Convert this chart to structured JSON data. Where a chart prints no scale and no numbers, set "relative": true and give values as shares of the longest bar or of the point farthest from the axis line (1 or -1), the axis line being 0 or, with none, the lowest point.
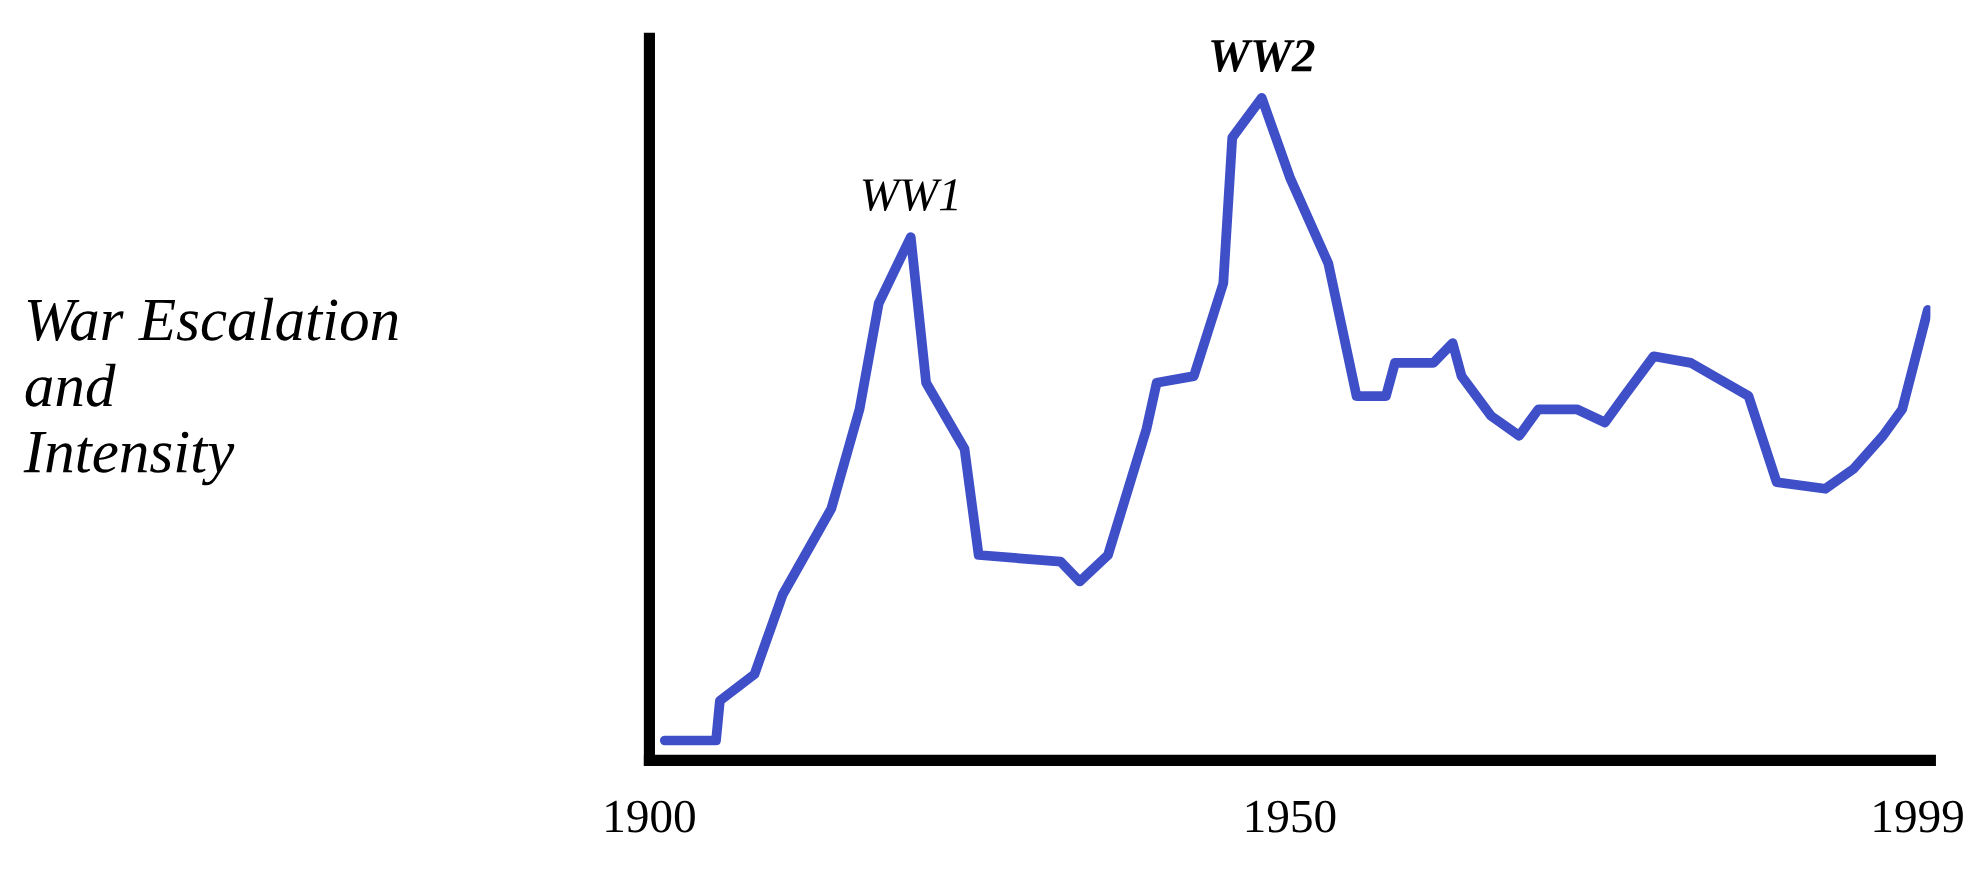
{
  "chart_data": {
    "type": "line",
    "relative": true,
    "ylabel": "War Escalation\nand\nIntensity",
    "xlim": [
      1900,
      2000
    ],
    "xticks": [
      1900,
      1950,
      1999
    ],
    "grid": false,
    "marker": "none",
    "line_style": "solid",
    "series": [
      {
        "color": "#3f4fc8",
        "x": [
          1901.2,
          1905.2,
          1905.5,
          1908.2,
          1910.4,
          1914.2,
          1916.4,
          1917.9,
          1920.4,
          1921.6,
          1924.6,
          1925.7,
          1932.1,
          1933.6,
          1935.8,
          1938.8,
          1939.6,
          1942.5,
          1944.8,
          1945.5,
          1947.8,
          1950,
          1953,
          1955.2,
          1957.5,
          1958.2,
          1961.2,
          1962.7,
          1963.4,
          1965.7,
          1967.9,
          1969.4,
          1972.4,
          1974.6,
          1976.1,
          1978.4,
          1981.3,
          1985.8,
          1988,
          1991.8,
          1994,
          1996.3,
          1997.8,
          1999.8
        ],
        "values": [
          0.03,
          0.03,
          0.09,
          0.13,
          0.25,
          0.38,
          0.53,
          0.69,
          0.79,
          0.57,
          0.47,
          0.31,
          0.3,
          0.27,
          0.31,
          0.5,
          0.57,
          0.58,
          0.72,
          0.94,
          1.0,
          0.88,
          0.75,
          0.55,
          0.55,
          0.6,
          0.6,
          0.63,
          0.58,
          0.52,
          0.49,
          0.53,
          0.53,
          0.51,
          0.55,
          0.61,
          0.6,
          0.55,
          0.42,
          0.41,
          0.44,
          0.49,
          0.53,
          0.68
        ]
      }
    ],
    "annotations": [
      {
        "text": "WW1",
        "x": 1920.4,
        "y": 0.79
      },
      {
        "text": "WW2",
        "x": 1947.8,
        "y": 1.0
      }
    ]
  }
}
